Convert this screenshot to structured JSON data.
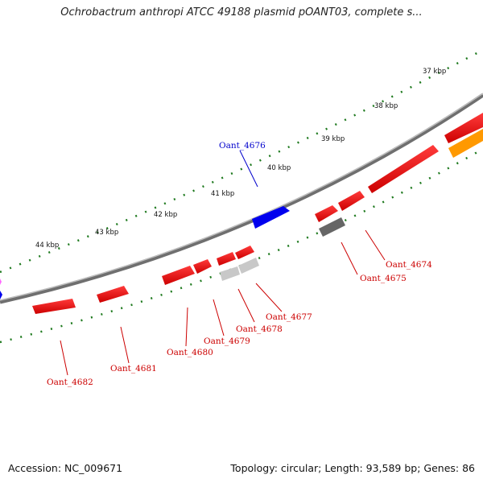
{
  "title": "Ochrobactrum anthropi ATCC 49188 plasmid pOANT03, complete s...",
  "footer": {
    "accession": "Accession: NC_009671",
    "summary": "Topology: circular; Length: 93,589 bp; Genes: 86"
  },
  "colors": {
    "forward": "#ff0000",
    "highlight": "#0000ee",
    "grey": "#777777",
    "lightgrey": "#c8c8c8",
    "orange": "#ff9900",
    "backbone": "#8a8a8a",
    "ticks": "#1f7a1f",
    "label_red": "#cc0000",
    "label_blue": "#0000cc"
  },
  "ticks": [
    "37 kbp",
    "38 kbp",
    "39 kbp",
    "40 kbp",
    "41 kbp",
    "42 kbp",
    "43 kbp",
    "44 kbp"
  ],
  "gene_labels": [
    {
      "id": "lbl-4676",
      "text": "Oant_4676",
      "color": "blue"
    },
    {
      "id": "lbl-4674",
      "text": "Oant_4674",
      "color": "red"
    },
    {
      "id": "lbl-4675",
      "text": "Oant_4675",
      "color": "red"
    },
    {
      "id": "lbl-4677",
      "text": "Oant_4677",
      "color": "red"
    },
    {
      "id": "lbl-4678",
      "text": "Oant_4678",
      "color": "red"
    },
    {
      "id": "lbl-4679",
      "text": "Oant_4679",
      "color": "red"
    },
    {
      "id": "lbl-4680",
      "text": "Oant_4680",
      "color": "red"
    },
    {
      "id": "lbl-4681",
      "text": "Oant_4681",
      "color": "red"
    },
    {
      "id": "lbl-4682",
      "text": "Oant_4682",
      "color": "red"
    }
  ]
}
